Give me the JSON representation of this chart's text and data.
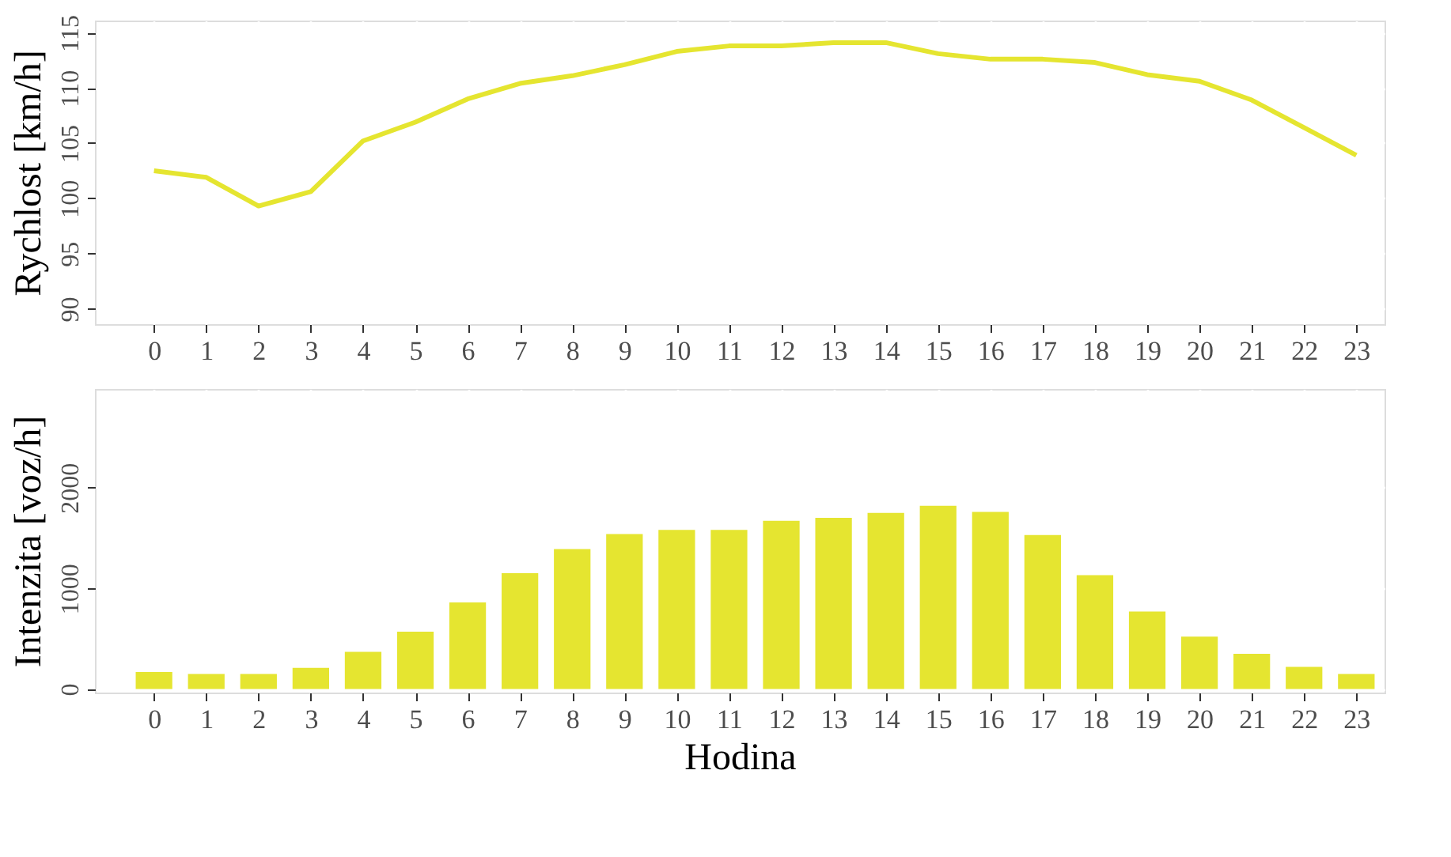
{
  "chart_data": [
    {
      "type": "line",
      "ylabel": "Rychlost [km/h]",
      "x": [
        0,
        1,
        2,
        3,
        4,
        5,
        6,
        7,
        8,
        9,
        10,
        11,
        12,
        13,
        14,
        15,
        16,
        17,
        18,
        19,
        20,
        21,
        22,
        23
      ],
      "series": [
        {
          "color": "#e5e530",
          "values": [
            102.5,
            101.9,
            99.3,
            100.6,
            105.2,
            106.9,
            109.0,
            110.4,
            111.1,
            112.1,
            113.3,
            113.8,
            113.8,
            114.1,
            114.1,
            113.1,
            112.6,
            112.6,
            112.3,
            111.2,
            110.6,
            108.9,
            106.4,
            103.9
          ]
        }
      ],
      "xlim": [
        -1.13,
        23.54
      ],
      "xticks": [
        0,
        1,
        2,
        3,
        4,
        5,
        6,
        7,
        8,
        9,
        10,
        11,
        12,
        13,
        14,
        15,
        16,
        17,
        18,
        19,
        20,
        21,
        22,
        23
      ],
      "ylim": [
        88.6,
        116.1
      ],
      "yticks": [
        90,
        95,
        100,
        105,
        110,
        115
      ],
      "grid": true,
      "line_style": "solid",
      "marker": "none"
    },
    {
      "type": "bar",
      "ylabel": "Intenzita [voz/h]",
      "xlabel": "Hodina",
      "x": [
        0,
        1,
        2,
        3,
        4,
        5,
        6,
        7,
        8,
        9,
        10,
        11,
        12,
        13,
        14,
        15,
        16,
        17,
        18,
        19,
        20,
        21,
        22,
        23
      ],
      "series": [
        {
          "color": "#e5e530",
          "values": [
            170,
            150,
            150,
            210,
            370,
            570,
            860,
            1150,
            1390,
            1540,
            1580,
            1580,
            1670,
            1700,
            1750,
            1820,
            1760,
            1530,
            1130,
            770,
            520,
            350,
            220,
            150
          ]
        }
      ],
      "xlim": [
        -1.13,
        23.54
      ],
      "xticks": [
        0,
        1,
        2,
        3,
        4,
        5,
        6,
        7,
        8,
        9,
        10,
        11,
        12,
        13,
        14,
        15,
        16,
        17,
        18,
        19,
        20,
        21,
        22,
        23
      ],
      "ylim": [
        -35,
        2980
      ],
      "yticks": [
        0,
        1000,
        2000
      ],
      "grid": true
    }
  ]
}
